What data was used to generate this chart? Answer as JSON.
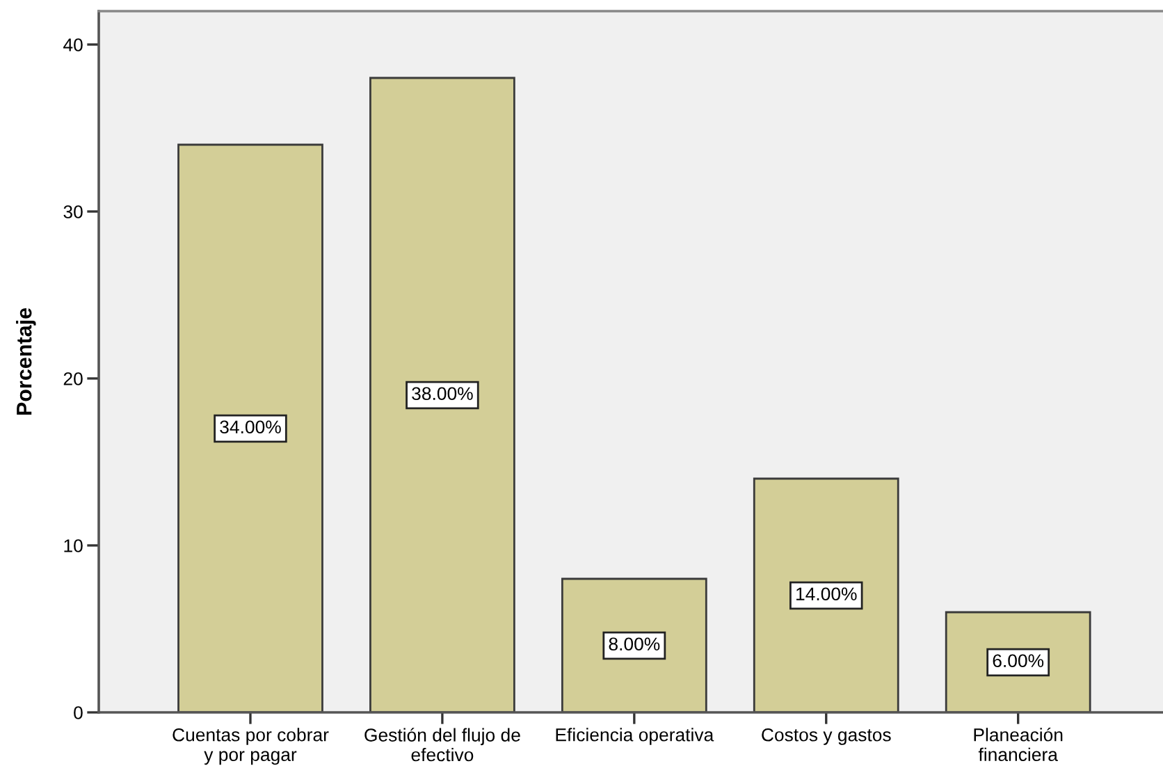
{
  "chart_data": {
    "type": "bar",
    "ylabel": "Porcentaje",
    "categories": [
      "Cuentas por cobrar\ny por pagar",
      "Gestión del flujo de\nefectivo",
      "Eficiencia operativa",
      "Costos y gastos",
      "Planeación\nfinanciera"
    ],
    "values": [
      34,
      38,
      8,
      14,
      6
    ],
    "color": "#d3ce97",
    "value_labels": [
      "34.00%",
      "38.00%",
      "8.00%",
      "14.00%",
      "6.00%"
    ],
    "ylim": [
      0,
      42
    ],
    "yticks": [
      0,
      10,
      20,
      30,
      40
    ],
    "grid": false,
    "legend": false
  }
}
